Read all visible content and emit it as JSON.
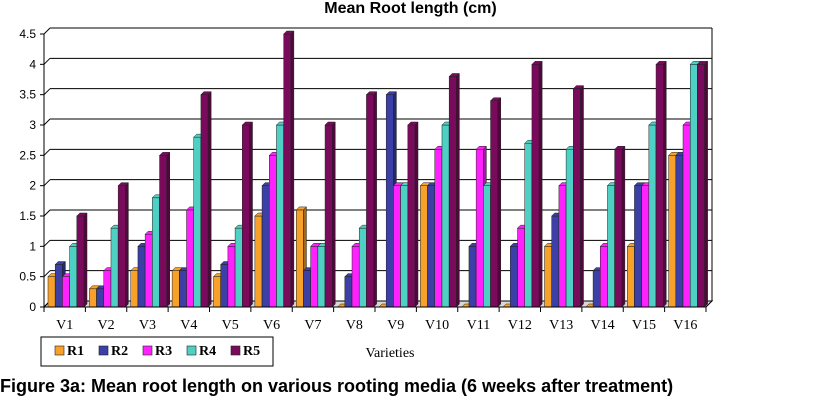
{
  "chart_data": {
    "type": "bar",
    "title": "Mean Root length (cm)",
    "xlabel": "Varieties",
    "ylabel": "",
    "ylim": [
      0,
      4.5
    ],
    "yticks": [
      "0",
      "0.5",
      "1",
      "1.5",
      "2",
      "2.5",
      "3",
      "3.5",
      "4",
      "4.5"
    ],
    "grid": true,
    "legend_position": "bottom-left",
    "categories": [
      "V1",
      "V2",
      "V3",
      "V4",
      "V5",
      "V6",
      "V7",
      "V8",
      "V9",
      "V10",
      "V11",
      "V12",
      "V13",
      "V14",
      "V15",
      "V16"
    ],
    "series": [
      {
        "name": "R1",
        "color": "#f7a12a",
        "values": [
          0.5,
          0.3,
          0.6,
          0.6,
          0.5,
          1.5,
          1.6,
          0,
          0,
          2.0,
          0,
          0,
          1.0,
          0,
          1.0,
          2.5
        ]
      },
      {
        "name": "R2",
        "color": "#3b3fa6",
        "values": [
          0.7,
          0.3,
          1.0,
          0.6,
          0.7,
          2.0,
          0.6,
          0.5,
          3.5,
          2.0,
          1.0,
          1.0,
          1.5,
          0.6,
          2.0,
          2.5
        ]
      },
      {
        "name": "R3",
        "color": "#ff22ff",
        "values": [
          0.5,
          0.6,
          1.2,
          1.6,
          1.0,
          2.5,
          1.0,
          1.0,
          2.0,
          2.6,
          2.6,
          1.3,
          2.0,
          1.0,
          2.0,
          3.0
        ]
      },
      {
        "name": "R4",
        "color": "#4fd0c4",
        "values": [
          1.0,
          1.3,
          1.8,
          2.8,
          1.3,
          3.0,
          1.0,
          1.3,
          2.0,
          3.0,
          2.0,
          2.7,
          2.6,
          2.0,
          3.0,
          4.0
        ]
      },
      {
        "name": "R5",
        "color": "#7a0a5c",
        "values": [
          1.5,
          2.0,
          2.5,
          3.5,
          3.0,
          4.5,
          3.0,
          3.5,
          3.0,
          3.8,
          3.4,
          4.0,
          3.6,
          2.6,
          4.0,
          4.0
        ]
      }
    ]
  },
  "caption": "Figure 3a: Mean root length on various rooting media (6 weeks after treatment)"
}
